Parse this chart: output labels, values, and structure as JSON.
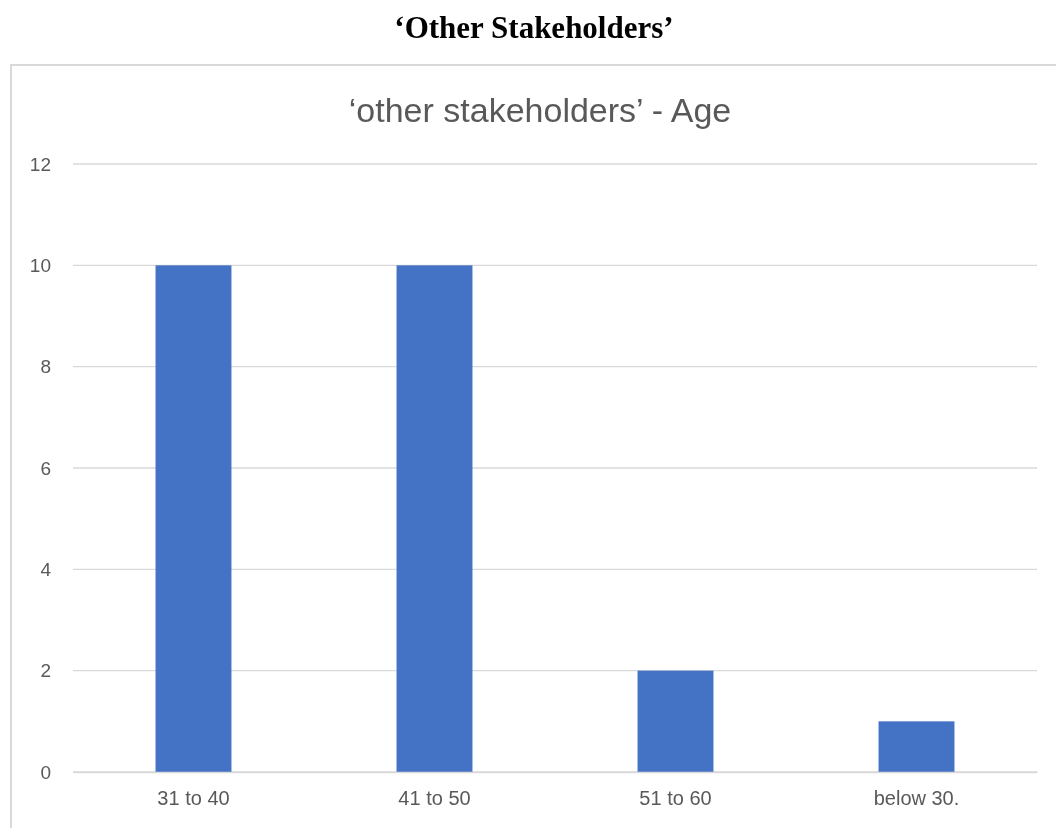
{
  "chart_data": {
    "type": "bar",
    "title": "‘Other Stakeholders’",
    "subtitle": "‘other stakeholders’ - Age",
    "categories": [
      "31 to 40",
      "41 to 50",
      "51 to 60",
      "below 30."
    ],
    "values": [
      10,
      10,
      2,
      1
    ],
    "color": "#4472c4",
    "ylim": [
      0,
      12
    ],
    "yticks": [
      0,
      2,
      4,
      6,
      8,
      10,
      12
    ],
    "grid": "y"
  }
}
